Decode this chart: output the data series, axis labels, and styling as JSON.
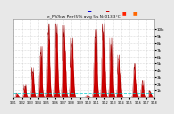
{
  "title": "e_PV/kw Per(5% avg 5s N:0133°C",
  "bg_color": "#e8e8e8",
  "plot_bg_color": "#ffffff",
  "grid_color": "#bbbbbb",
  "bar_color": "#cc0000",
  "ylim": [
    0,
    115
  ],
  "ytick_labels": [
    "1k",
    "2k",
    "3k",
    "4k",
    "5k",
    "6k",
    "7k",
    "8k",
    "9k",
    "10k"
  ],
  "ytick_vals": [
    10,
    20,
    30,
    40,
    50,
    60,
    70,
    80,
    90,
    100
  ],
  "num_days": 18,
  "hline_y": 6,
  "hline_color": "#00cccc"
}
